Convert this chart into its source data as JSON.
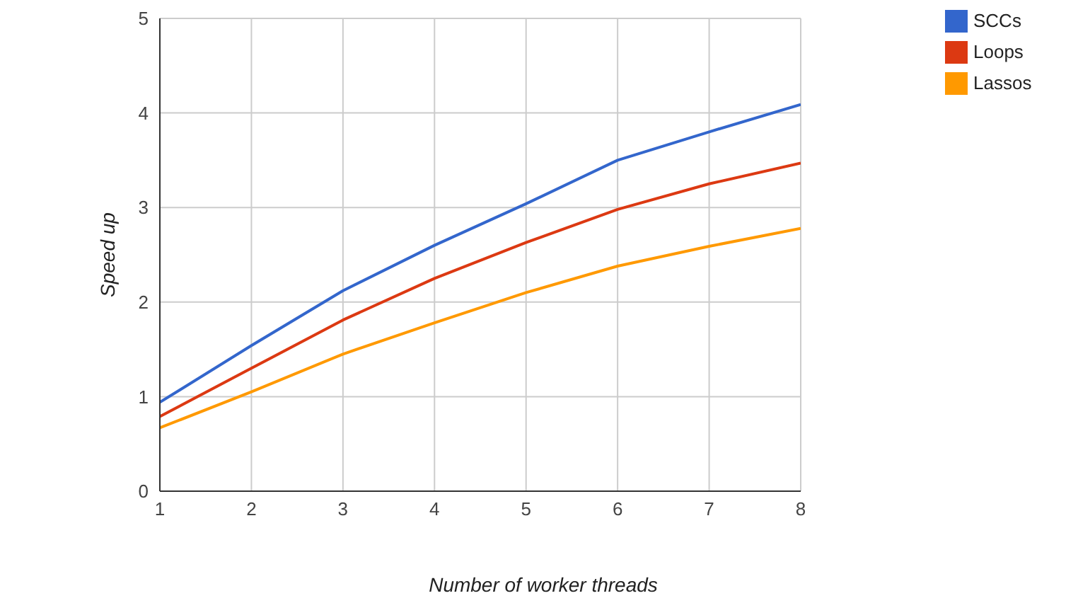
{
  "chart_data": {
    "type": "line",
    "xlabel": "Number of worker threads",
    "ylabel": "Speed up",
    "x": [
      1,
      2,
      3,
      4,
      5,
      6,
      7,
      8
    ],
    "series": [
      {
        "name": "SCCs",
        "color": "#3366cc",
        "values": [
          0.94,
          1.54,
          2.12,
          2.6,
          3.04,
          3.5,
          3.8,
          4.09
        ]
      },
      {
        "name": "Loops",
        "color": "#dc3912",
        "values": [
          0.79,
          1.3,
          1.81,
          2.25,
          2.63,
          2.98,
          3.25,
          3.47
        ]
      },
      {
        "name": "Lassos",
        "color": "#ff9900",
        "values": [
          0.67,
          1.05,
          1.45,
          1.78,
          2.1,
          2.38,
          2.59,
          2.78
        ]
      }
    ],
    "xlim": [
      1,
      8
    ],
    "xticks": [
      1,
      2,
      3,
      4,
      5,
      6,
      7,
      8
    ],
    "ylim": [
      0,
      5
    ],
    "yticks": [
      0,
      1,
      2,
      3,
      4,
      5
    ],
    "grid": true,
    "legend": "top right",
    "marker": "none",
    "line_style": "solid"
  }
}
